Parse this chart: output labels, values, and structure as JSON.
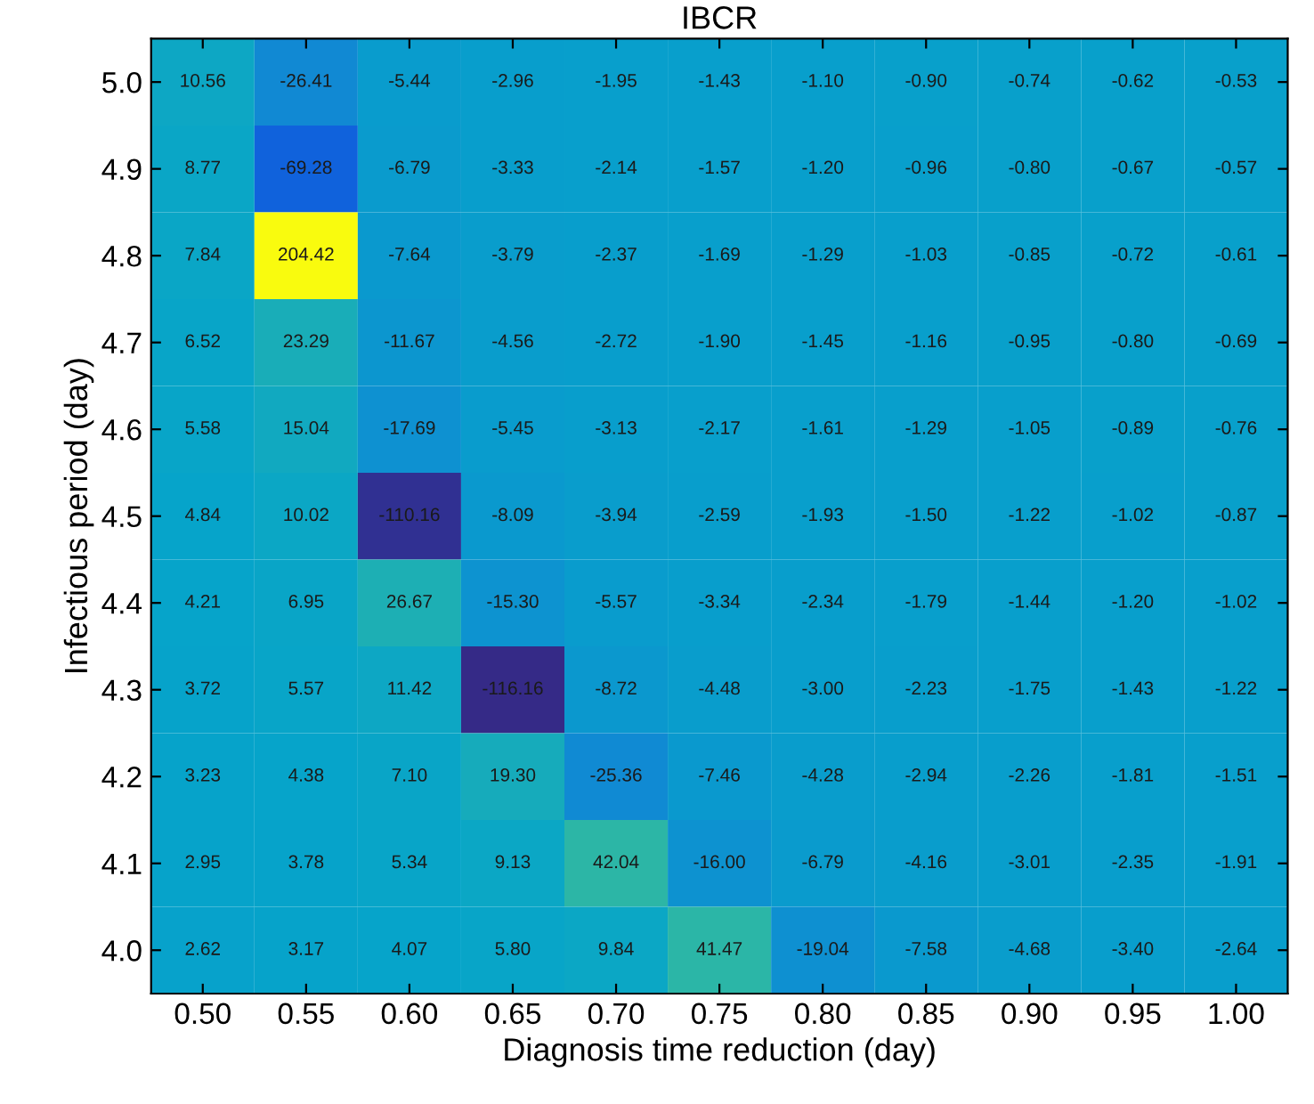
{
  "chart_data": {
    "type": "heatmap",
    "title": "IBCR",
    "xlabel": "Diagnosis time reduction (day)",
    "ylabel": "Infectious period (day)",
    "categories": [
      "0.50",
      "0.55",
      "0.60",
      "0.65",
      "0.70",
      "0.75",
      "0.80",
      "0.85",
      "0.90",
      "0.95",
      "1.00"
    ],
    "y_categories": [
      "5.0",
      "4.9",
      "4.8",
      "4.7",
      "4.6",
      "4.5",
      "4.4",
      "4.3",
      "4.2",
      "4.1",
      "4.0"
    ],
    "cells": [
      [
        10.56,
        -26.41,
        -5.44,
        -2.96,
        -1.95,
        -1.43,
        -1.1,
        -0.9,
        -0.74,
        -0.62,
        -0.53
      ],
      [
        8.77,
        -69.28,
        -6.79,
        -3.33,
        -2.14,
        -1.57,
        -1.2,
        -0.96,
        -0.8,
        -0.67,
        -0.57
      ],
      [
        7.84,
        204.42,
        -7.64,
        -3.79,
        -2.37,
        -1.69,
        -1.29,
        -1.03,
        -0.85,
        -0.72,
        -0.61
      ],
      [
        6.52,
        23.29,
        -11.67,
        -4.56,
        -2.72,
        -1.9,
        -1.45,
        -1.16,
        -0.95,
        -0.8,
        -0.69
      ],
      [
        5.58,
        15.04,
        -17.69,
        -5.45,
        -3.13,
        -2.17,
        -1.61,
        -1.29,
        -1.05,
        -0.89,
        -0.76
      ],
      [
        4.84,
        10.02,
        -110.16,
        -8.09,
        -3.94,
        -2.59,
        -1.93,
        -1.5,
        -1.22,
        -1.02,
        -0.87
      ],
      [
        4.21,
        6.95,
        26.67,
        -15.3,
        -5.57,
        -3.34,
        -2.34,
        -1.79,
        -1.44,
        -1.2,
        -1.02
      ],
      [
        3.72,
        5.57,
        11.42,
        -116.16,
        -8.72,
        -4.48,
        -3.0,
        -2.23,
        -1.75,
        -1.43,
        -1.22
      ],
      [
        3.23,
        4.38,
        7.1,
        19.3,
        -25.36,
        -7.46,
        -4.28,
        -2.94,
        -2.26,
        -1.81,
        -1.51
      ],
      [
        2.95,
        3.78,
        5.34,
        9.13,
        42.04,
        -16.0,
        -6.79,
        -4.16,
        -3.01,
        -2.35,
        -1.91
      ],
      [
        2.62,
        3.17,
        4.07,
        5.8,
        9.84,
        41.47,
        -19.04,
        -7.58,
        -4.68,
        -3.4,
        -2.64
      ]
    ],
    "cell_labels": [
      [
        "10.56",
        "-26.41",
        "-5.44",
        "-2.96",
        "-1.95",
        "-1.43",
        "-1.10",
        "-0.90",
        "-0.74",
        "-0.62",
        "-0.53"
      ],
      [
        "8.77",
        "-69.28",
        "-6.79",
        "-3.33",
        "-2.14",
        "-1.57",
        "-1.20",
        "-0.96",
        "-0.80",
        "-0.67",
        "-0.57"
      ],
      [
        "7.84",
        "204.42",
        "-7.64",
        "-3.79",
        "-2.37",
        "-1.69",
        "-1.29",
        "-1.03",
        "-0.85",
        "-0.72",
        "-0.61"
      ],
      [
        "6.52",
        "23.29",
        "-11.67",
        "-4.56",
        "-2.72",
        "-1.90",
        "-1.45",
        "-1.16",
        "-0.95",
        "-0.80",
        "-0.69"
      ],
      [
        "5.58",
        "15.04",
        "-17.69",
        "-5.45",
        "-3.13",
        "-2.17",
        "-1.61",
        "-1.29",
        "-1.05",
        "-0.89",
        "-0.76"
      ],
      [
        "4.84",
        "10.02",
        "-110.16",
        "-8.09",
        "-3.94",
        "-2.59",
        "-1.93",
        "-1.50",
        "-1.22",
        "-1.02",
        "-0.87"
      ],
      [
        "4.21",
        "6.95",
        "26.67",
        "-15.30",
        "-5.57",
        "-3.34",
        "-2.34",
        "-1.79",
        "-1.44",
        "-1.20",
        "-1.02"
      ],
      [
        "3.72",
        "5.57",
        "11.42",
        "-116.16",
        "-8.72",
        "-4.48",
        "-3.00",
        "-2.23",
        "-1.75",
        "-1.43",
        "-1.22"
      ],
      [
        "3.23",
        "4.38",
        "7.10",
        "19.30",
        "-25.36",
        "-7.46",
        "-4.28",
        "-2.94",
        "-2.26",
        "-1.81",
        "-1.51"
      ],
      [
        "2.95",
        "3.78",
        "5.34",
        "9.13",
        "42.04",
        "-16.00",
        "-6.79",
        "-4.16",
        "-3.01",
        "-2.35",
        "-1.91"
      ],
      [
        "2.62",
        "3.17",
        "4.07",
        "5.80",
        "9.84",
        "41.47",
        "-19.04",
        "-7.58",
        "-4.68",
        "-3.40",
        "-2.64"
      ]
    ]
  }
}
